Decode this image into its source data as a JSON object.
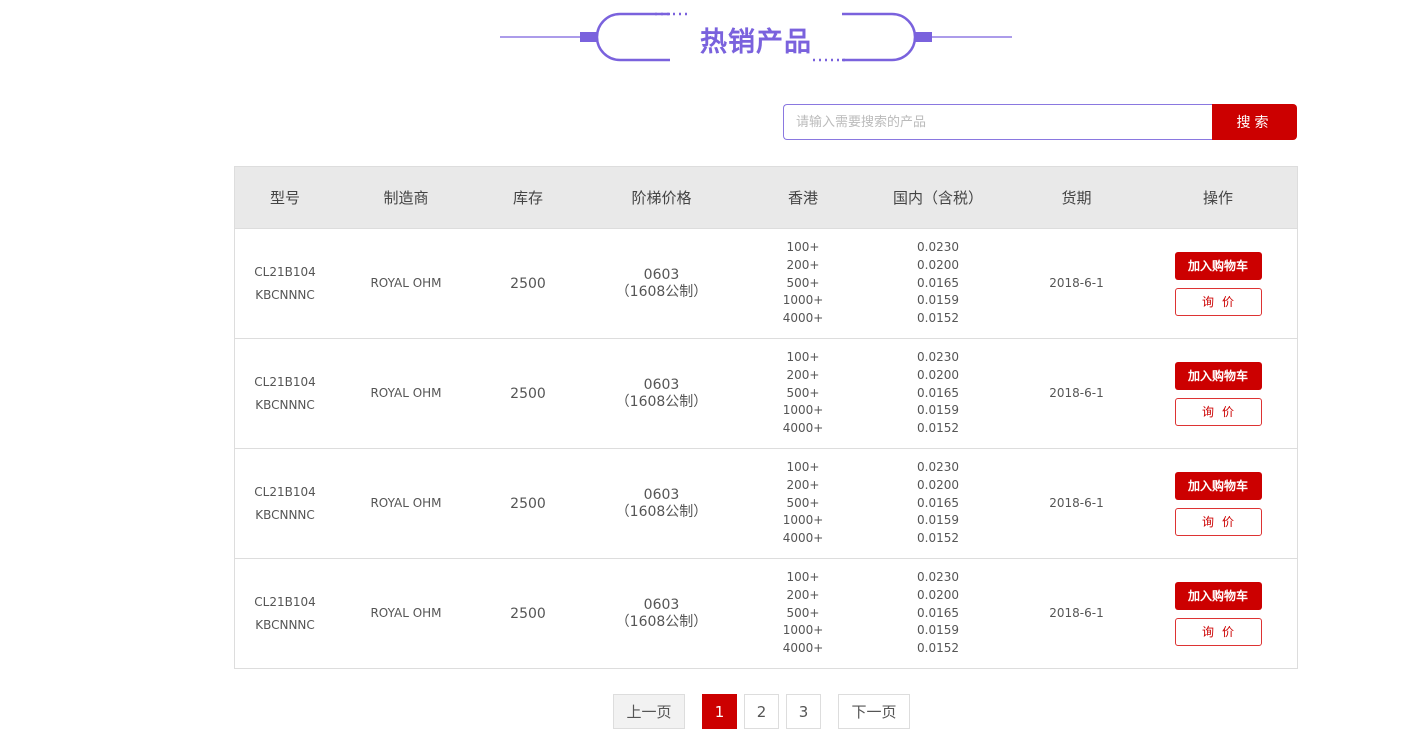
{
  "section_title": "热销产品",
  "accent_color": "#7a62dd",
  "brand_red": "#cc0000",
  "search": {
    "placeholder": "请输入需要搜索的产品",
    "value": "",
    "button": "搜索"
  },
  "table": {
    "headers": [
      "型号",
      "制造商",
      "库存",
      "阶梯价格",
      "香港",
      "国内（含税）",
      "货期",
      "操作"
    ],
    "rows": [
      {
        "model": [
          "CL21B104",
          "KBCNNNC"
        ],
        "maker": "ROYAL OHM",
        "stock": "2500",
        "package": [
          "0603",
          "（1608公制）"
        ],
        "qty": [
          "100+",
          "200+",
          "500+",
          "1000+",
          "4000+"
        ],
        "price": [
          "0.0230",
          "0.0200",
          "0.0165",
          "0.0159",
          "0.0152"
        ],
        "delivery": "2018-6-1",
        "cart": "加入购物车",
        "ask": "询价"
      },
      {
        "model": [
          "CL21B104",
          "KBCNNNC"
        ],
        "maker": "ROYAL OHM",
        "stock": "2500",
        "package": [
          "0603",
          "（1608公制）"
        ],
        "qty": [
          "100+",
          "200+",
          "500+",
          "1000+",
          "4000+"
        ],
        "price": [
          "0.0230",
          "0.0200",
          "0.0165",
          "0.0159",
          "0.0152"
        ],
        "delivery": "2018-6-1",
        "cart": "加入购物车",
        "ask": "询价"
      },
      {
        "model": [
          "CL21B104",
          "KBCNNNC"
        ],
        "maker": "ROYAL OHM",
        "stock": "2500",
        "package": [
          "0603",
          "（1608公制）"
        ],
        "qty": [
          "100+",
          "200+",
          "500+",
          "1000+",
          "4000+"
        ],
        "price": [
          "0.0230",
          "0.0200",
          "0.0165",
          "0.0159",
          "0.0152"
        ],
        "delivery": "2018-6-1",
        "cart": "加入购物车",
        "ask": "询价"
      },
      {
        "model": [
          "CL21B104",
          "KBCNNNC"
        ],
        "maker": "ROYAL OHM",
        "stock": "2500",
        "package": [
          "0603",
          "（1608公制）"
        ],
        "qty": [
          "100+",
          "200+",
          "500+",
          "1000+",
          "4000+"
        ],
        "price": [
          "0.0230",
          "0.0200",
          "0.0165",
          "0.0159",
          "0.0152"
        ],
        "delivery": "2018-6-1",
        "cart": "加入购物车",
        "ask": "询价"
      }
    ]
  },
  "pagination": {
    "prev": "上一页",
    "pages": [
      "1",
      "2",
      "3"
    ],
    "current": "1",
    "next": "下一页"
  }
}
